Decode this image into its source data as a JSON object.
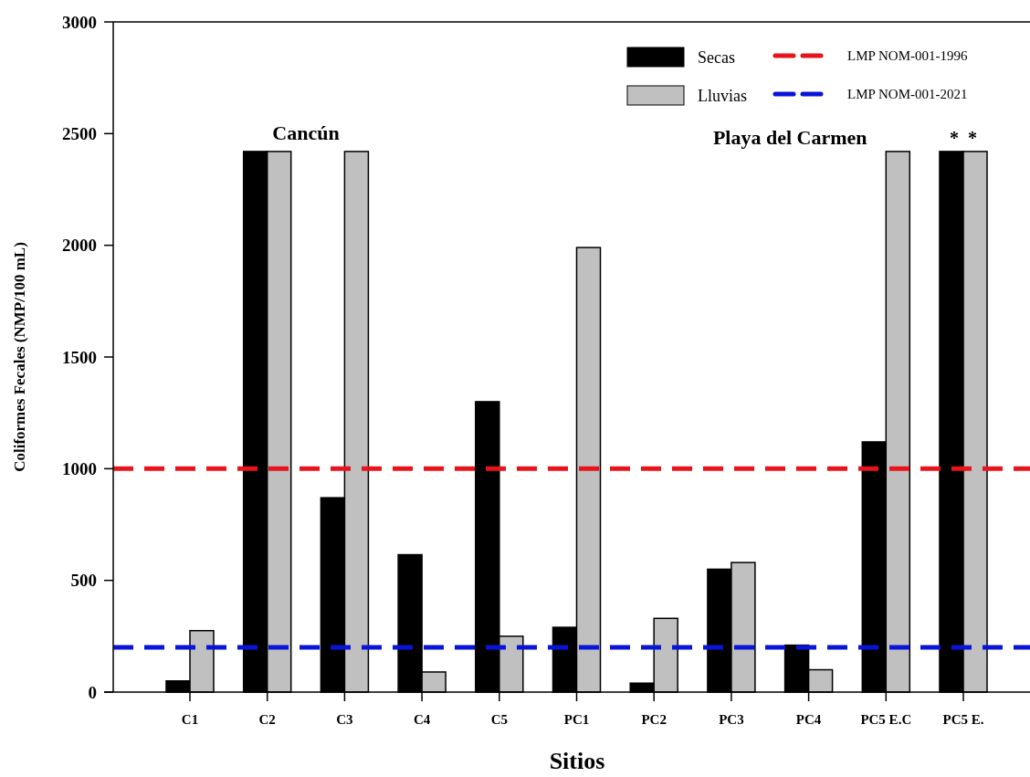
{
  "chart_data": {
    "type": "bar",
    "xlabel": "Sitios",
    "ylabel": "Coliformes Fecales (NMP/100 mL)",
    "categories": [
      "C1",
      "C2",
      "C3",
      "C4",
      "C5",
      "PC1",
      "PC2",
      "PC3",
      "PC4",
      "PC5 E.C",
      "PC5 E."
    ],
    "series": [
      {
        "name": "Secas",
        "color": "#000000",
        "values": [
          50,
          2420,
          870,
          615,
          1300,
          290,
          40,
          550,
          210,
          1120,
          2420
        ]
      },
      {
        "name": "Lluvias",
        "color": "#c0c0c0",
        "values": [
          275,
          2420,
          2420,
          90,
          250,
          1990,
          330,
          580,
          100,
          2420,
          2420
        ]
      }
    ],
    "ylim": [
      0,
      3000
    ],
    "yticks": [
      0,
      500,
      1000,
      1500,
      2000,
      2500,
      3000
    ],
    "ref_lines": [
      {
        "axis": "y",
        "value": 1000,
        "label": "LMP NOM-001-1996",
        "color": "#e8141b",
        "line_style": "dashed"
      },
      {
        "axis": "y",
        "value": 200,
        "label": "LMP NOM-001-2021",
        "color": "#0a14d8",
        "line_style": "dashed"
      }
    ],
    "legend": "top right",
    "annotations": [
      "Cancún",
      "Playa del Carmen",
      {
        "text": "*  *",
        "x": "PC5 E.",
        "y": 2420
      }
    ]
  }
}
